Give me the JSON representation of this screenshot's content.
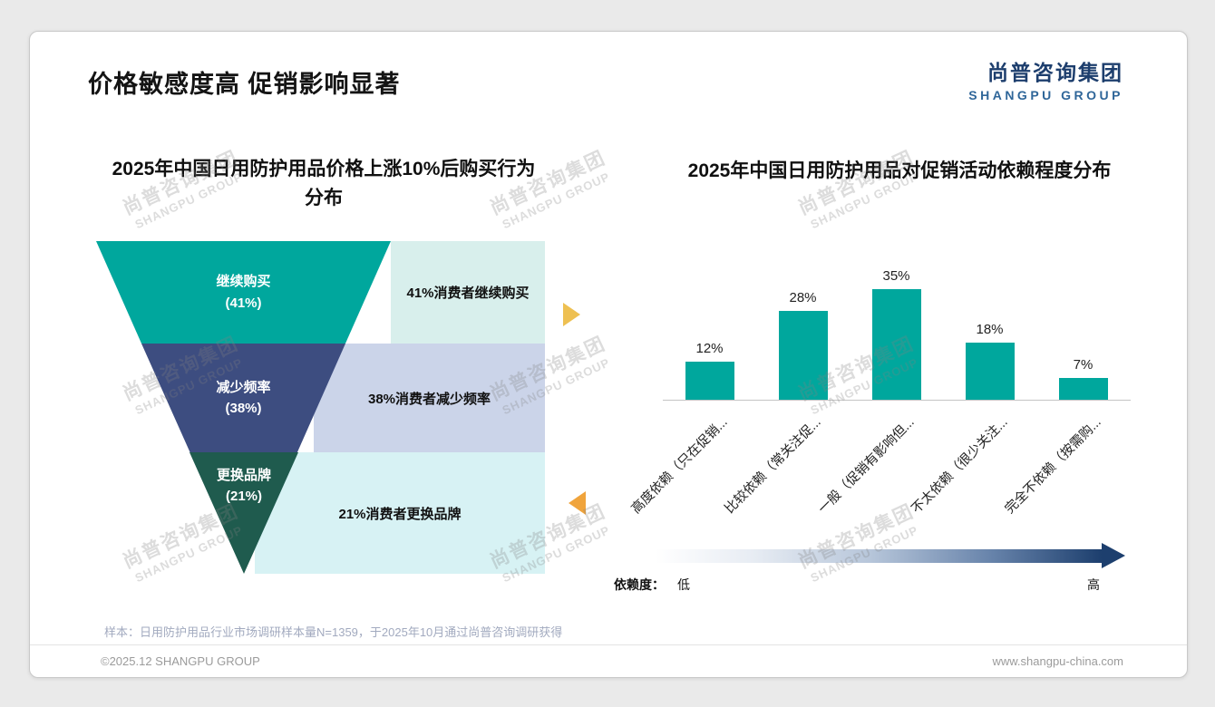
{
  "slide": {
    "title": "价格敏感度高 促销影响显著",
    "logo": {
      "cn": "尚普咨询集团",
      "en": "SHANGPU GROUP"
    },
    "watermark": {
      "cn": "尚普咨询集团",
      "en": "SHANGPU GROUP"
    },
    "note": "样本：日用防护用品行业市场调研样本量N=1359，于2025年10月通过尚普咨询调研获得",
    "footer": {
      "left": "©2025.12 SHANGPU GROUP",
      "right": "www.shangpu-china.com"
    }
  },
  "chart_data": [
    {
      "type": "funnel",
      "title": "2025年中国日用防护用品价格上涨10%后购买行为\n分布",
      "categories": [
        "继续购买",
        "减少频率",
        "更换品牌"
      ],
      "values": [
        41,
        38,
        21
      ],
      "value_labels": [
        "(41%)",
        "(38%)",
        "(21%)"
      ],
      "annotations": [
        "41%消费者继续购买",
        "38%消费者减少频率",
        "21%消费者更换品牌"
      ],
      "colors": [
        "#00a79d",
        "#3d4d80",
        "#1f5b4e"
      ],
      "annotation_bg": [
        "#d8efec",
        "#cbd4e9",
        "#d7f2f4"
      ]
    },
    {
      "type": "bar",
      "title": "2025年中国日用防护用品对促销活动依赖程度分布",
      "categories": [
        "高度依赖（只在促销...",
        "比较依赖（常关注促...",
        "一般（促销有影响但...",
        "不太依赖（很少关注...",
        "完全不依赖（按需购..."
      ],
      "values": [
        12,
        28,
        35,
        18,
        7
      ],
      "value_labels": [
        "12%",
        "28%",
        "35%",
        "18%",
        "7%"
      ],
      "bar_color": "#00a79d",
      "ylim": [
        0,
        40
      ],
      "grid": false,
      "axis_label": "依赖度：",
      "axis_low": "低",
      "axis_high": "高"
    }
  ]
}
